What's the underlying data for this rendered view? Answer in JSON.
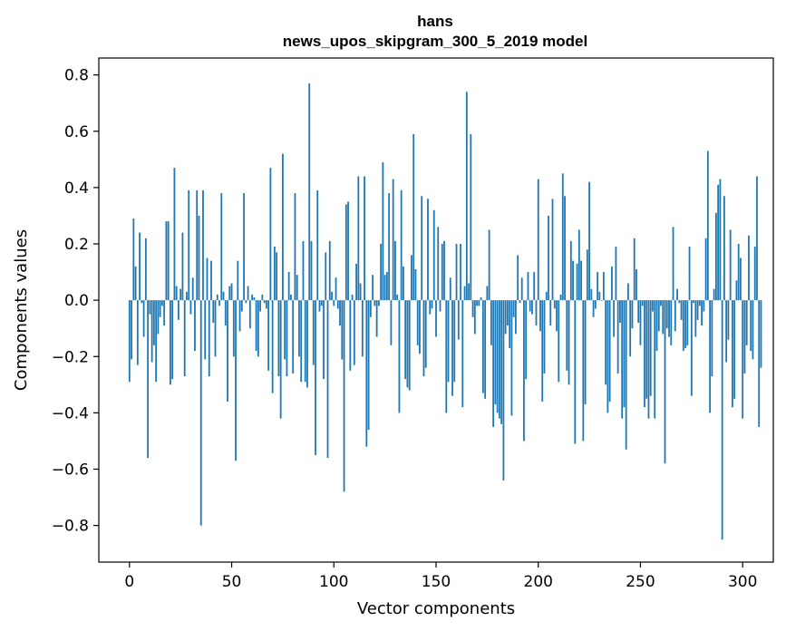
{
  "chart_data": {
    "type": "bar",
    "title": "hans",
    "subtitle": "news_upos_skipgram_300_5_2019 model",
    "xlabel": "Vector components",
    "ylabel": "Components values",
    "xlim": [
      -15,
      315
    ],
    "ylim": [
      -0.93,
      0.86
    ],
    "xticks": [
      0,
      50,
      100,
      150,
      200,
      250,
      300
    ],
    "yticks": [
      -0.8,
      -0.6,
      -0.4,
      -0.2,
      0.0,
      0.2,
      0.4,
      0.6,
      0.8
    ],
    "ytick_labels": [
      "−0.8",
      "−0.6",
      "−0.4",
      "−0.2",
      "0.0",
      "0.2",
      "0.4",
      "0.6",
      "0.8"
    ],
    "grid": false,
    "color": "#1f77b4",
    "values": [
      -0.29,
      -0.21,
      0.29,
      0.12,
      -0.23,
      0.24,
      -0.01,
      -0.13,
      0.22,
      -0.56,
      -0.05,
      -0.22,
      -0.16,
      -0.29,
      -0.12,
      -0.06,
      -0.02,
      -0.09,
      0.28,
      0.28,
      -0.3,
      -0.28,
      0.47,
      0.05,
      -0.07,
      0.04,
      0.24,
      -0.27,
      0.03,
      0.39,
      -0.05,
      0.08,
      -0.18,
      0.39,
      0.3,
      -0.8,
      0.39,
      -0.21,
      0.15,
      -0.27,
      0.14,
      -0.08,
      -0.2,
      0.02,
      -0.02,
      0.38,
      0.03,
      -0.09,
      -0.36,
      0.05,
      0.06,
      -0.2,
      -0.57,
      0.14,
      -0.11,
      -0.04,
      0.38,
      -0.01,
      0.05,
      -0.1,
      0.02,
      0.01,
      -0.18,
      -0.2,
      -0.04,
      0.02,
      -0.01,
      -0.03,
      -0.25,
      0.47,
      -0.33,
      0.19,
      0.17,
      -0.27,
      -0.42,
      0.52,
      -0.21,
      -0.27,
      0.1,
      0.02,
      -0.26,
      0.38,
      0.09,
      -0.2,
      -0.29,
      0.21,
      -0.29,
      -0.31,
      0.77,
      0.21,
      -0.23,
      -0.55,
      0.39,
      -0.04,
      -0.02,
      -0.28,
      0.17,
      -0.56,
      0.21,
      0.03,
      -0.02,
      0.08,
      -0.03,
      -0.09,
      -0.21,
      -0.68,
      0.34,
      0.35,
      -0.25,
      0.02,
      -0.23,
      0.13,
      0.44,
      0.06,
      -0.2,
      0.44,
      -0.52,
      -0.46,
      -0.06,
      0.09,
      -0.02,
      -0.13,
      -0.02,
      0.2,
      0.49,
      0.09,
      0.1,
      0.38,
      -0.16,
      0.43,
      0.21,
      0.02,
      -0.4,
      0.39,
      0.12,
      -0.28,
      -0.31,
      -0.32,
      0.16,
      0.59,
      0.11,
      -0.16,
      -0.19,
      0.37,
      -0.27,
      -0.24,
      0.36,
      -0.05,
      -0.03,
      0.32,
      -0.13,
      0.26,
      -0.04,
      0.2,
      0.21,
      -0.4,
      -0.29,
      0.08,
      -0.34,
      -0.29,
      0.2,
      -0.14,
      0.2,
      -0.38,
      0.05,
      0.74,
      0.06,
      0.59,
      -0.06,
      -0.12,
      -0.02,
      -0.02,
      0.01,
      -0.33,
      -0.35,
      0.05,
      0.25,
      -0.16,
      -0.45,
      -0.37,
      -0.4,
      -0.42,
      -0.44,
      -0.64,
      -0.12,
      -0.09,
      -0.17,
      -0.41,
      -0.06,
      -0.12,
      0.16,
      -0.01,
      0.08,
      -0.5,
      -0.28,
      0.1,
      -0.04,
      -0.05,
      0.1,
      -0.09,
      0.43,
      -0.11,
      -0.36,
      -0.26,
      0.03,
      0.3,
      -0.09,
      0.36,
      -0.03,
      -0.11,
      -0.29,
      0.02,
      0.45,
      0.37,
      -0.25,
      -0.3,
      0.21,
      0.14,
      -0.51,
      0.13,
      0.25,
      0.14,
      -0.5,
      -0.37,
      0.18,
      0.42,
      0.04,
      -0.06,
      -0.03,
      0.1,
      0.03,
      0.0,
      0.1,
      -0.3,
      -0.4,
      -0.36,
      0.12,
      -0.13,
      0.19,
      -0.26,
      -0.08,
      -0.42,
      -0.38,
      -0.53,
      0.06,
      -0.2,
      -0.1,
      0.22,
      0.11,
      -0.08,
      -0.16,
      -0.02,
      -0.38,
      -0.35,
      -0.42,
      -0.34,
      -0.04,
      -0.42,
      -0.18,
      -0.11,
      -0.02,
      -0.12,
      -0.58,
      -0.1,
      -0.13,
      -0.16,
      0.26,
      -0.11,
      0.04,
      -0.01,
      -0.07,
      -0.18,
      -0.17,
      -0.16,
      0.19,
      -0.34,
      -0.01,
      -0.13,
      -0.07,
      -0.02,
      -0.09,
      -0.04,
      0.22,
      0.53,
      -0.4,
      -0.27,
      0.04,
      0.31,
      0.41,
      0.43,
      -0.85,
      0.37,
      -0.22,
      -0.14,
      0.25,
      -0.38,
      -0.35,
      0.07,
      0.2,
      0.15,
      -0.42,
      -0.26,
      -0.16,
      0.23,
      -0.18,
      -0.21,
      0.19,
      0.44,
      -0.45,
      -0.24
    ]
  }
}
